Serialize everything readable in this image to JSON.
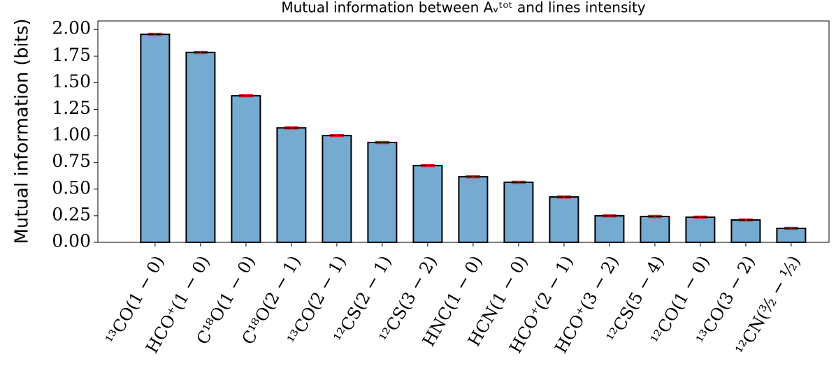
{
  "chart_data": {
    "type": "bar",
    "title": "Mutual information between Aᵥᵗᵒᵗ and lines intensity",
    "y_label": "Mutual information (bits)",
    "categories": [
      "¹³CO(1 − 0)",
      "HCO⁺(1 − 0)",
      "C¹⁸O(1 − 0)",
      "C¹⁸O(2 − 1)",
      "¹³CO(2 − 1)",
      "¹²CS(2 − 1)",
      "¹²CS(3 − 2)",
      "HNC(1 − 0)",
      "HCN(1 − 0)",
      "HCO⁺(2 − 1)",
      "HCO⁺(3 − 2)",
      "¹²CS(5 − 4)",
      "¹²CO(1 − 0)",
      "¹³CO(3 − 2)",
      "¹²CN(³⁄₂ − ¹⁄₂)"
    ],
    "values": [
      1.954,
      1.784,
      1.377,
      1.075,
      1.003,
      0.938,
      0.721,
      0.616,
      0.564,
      0.426,
      0.249,
      0.243,
      0.236,
      0.21,
      0.131
    ],
    "errors": [
      0.01,
      0.01,
      0.01,
      0.01,
      0.01,
      0.01,
      0.01,
      0.01,
      0.01,
      0.01,
      0.01,
      0.01,
      0.01,
      0.01,
      0.01
    ],
    "color": "#75aad1",
    "error_color": "#e31a1c",
    "ylim": [
      0,
      2.08
    ],
    "yticks": [
      {
        "value": 0,
        "label": "0.00"
      },
      {
        "value": 0.25,
        "label": "0.25"
      },
      {
        "value": 0.5,
        "label": "0.50"
      },
      {
        "value": 0.75,
        "label": "0.75"
      },
      {
        "value": 1,
        "label": "1.00"
      },
      {
        "value": 1.25,
        "label": "1.25"
      },
      {
        "value": 1.5,
        "label": "1.50"
      },
      {
        "value": 1.75,
        "label": "1.75"
      },
      {
        "value": 2,
        "label": "2.00"
      }
    ],
    "grid": false
  }
}
